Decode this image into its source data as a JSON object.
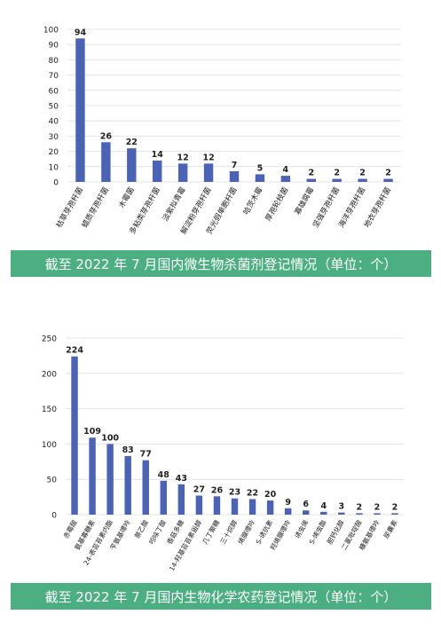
{
  "colors": {
    "bar": "#4a63b7",
    "caption_bg": "#4caf82",
    "grid": "#e4e4e4",
    "text": "#222222"
  },
  "chart_data": [
    {
      "type": "bar",
      "title": "截至 2022 年 7 月国内微生物杀菌剂登记情况（单位：个）",
      "categories": [
        "枯草芽孢杆菌",
        "蜡质芽孢杆菌",
        "木霉菌",
        "多粘类芽孢杆菌",
        "淡紫拟青霉",
        "解淀粉芽孢杆菌",
        "荧光假单胞杆菌",
        "哈茨木霉",
        "厚孢轮枝菌",
        "寡雄腐霉",
        "坚强芽孢杆菌",
        "海洋芽孢杆菌",
        "地衣芽孢杆菌"
      ],
      "values": [
        94,
        26,
        22,
        14,
        12,
        12,
        7,
        5,
        4,
        2,
        2,
        2,
        2
      ],
      "ylim": [
        0,
        100
      ],
      "yticks": [
        0,
        10,
        20,
        30,
        40,
        50,
        60,
        70,
        80,
        90,
        100
      ],
      "grid": true
    },
    {
      "type": "bar",
      "title": "截至 2022 年 7 月国内生物化学农药登记情况（单位：个）",
      "categories": [
        "赤霉酸",
        "氨基寡糖素",
        "24-表芸苔素内酯",
        "苄氨基嘌呤",
        "萘乙酸",
        "吲哚丁酸",
        "香菇多糖",
        "14-羟基芸苔素甾醇",
        "几丁聚糖",
        "三十烷醇",
        "烯腺嘌呤",
        "S-诱抗素",
        "羟烯腺嘌呤",
        "诱虫烯",
        "S-烯虫酯",
        "胆钙化醇",
        "二氯吡啶酸",
        "糠氨基嘌呤",
        "尿囊素"
      ],
      "values": [
        224,
        109,
        100,
        83,
        77,
        48,
        43,
        27,
        26,
        23,
        22,
        20,
        9,
        6,
        4,
        3,
        2,
        2,
        2
      ],
      "ylim": [
        0,
        250
      ],
      "yticks": [
        0,
        50,
        100,
        150,
        200,
        250
      ],
      "grid": true
    }
  ]
}
